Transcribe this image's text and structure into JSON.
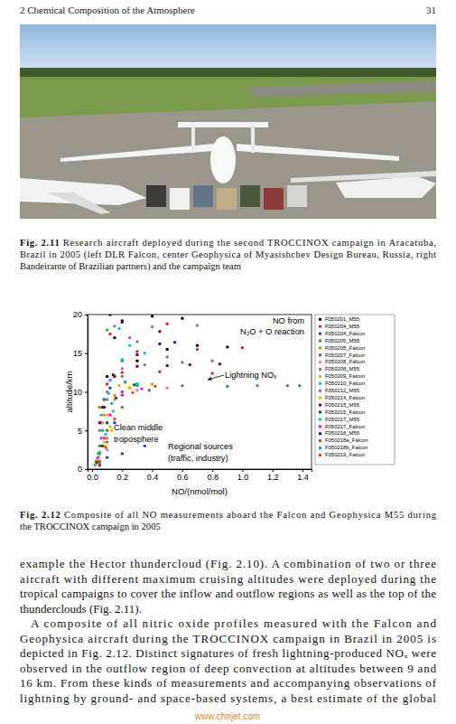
{
  "header": {
    "chapter": "2 Chemical Composition of the Atmosphere",
    "page": 31
  },
  "captions": [
    {
      "label": "Fig. 2.11",
      "lines": [
        "Research aircraft deployed during the second TROCCINOX campaign in Aracatuba,",
        "Brazil in 2005 (left DLR Falcon, center Geophysica of Myasishchev Design Bureau, Russia, right",
        "Bandeirante of Brazilian partners) and the campaign team"
      ]
    },
    {
      "label": "Fig. 2.12",
      "lines": [
        "Composite of all NO measurements aboard the Falcon and Geophysica M55 during",
        "the TROCCINOX campaign in 2005"
      ]
    }
  ],
  "chart_data": {
    "type": "scatter",
    "x_label": "NO/(nmol/mol)",
    "y_label": "altitude/km",
    "xlim": [
      -0.03,
      1.46
    ],
    "ylim": [
      0,
      20
    ],
    "xticks": [
      {
        "value": 0,
        "label": "0.0"
      },
      0.2,
      0.4,
      0.6,
      0.8,
      {
        "value": 1,
        "label": "1.0"
      },
      1.2,
      1.4
    ],
    "yticks": [
      0,
      5,
      10,
      15,
      20
    ],
    "grid": false,
    "legend": "right",
    "marker": "circle",
    "annotations": [
      [
        "NO from",
        "N₂O + O reaction"
      ],
      [
        "Lightning NOₓ"
      ],
      [
        "Clean middle",
        "troposphere"
      ],
      [
        "Regional sources",
        "(traffic, industry)"
      ]
    ],
    "series": [
      {
        "name": "F050201_M55",
        "color": "#000000",
        "x": [
          0.05,
          0.08,
          0.1,
          0.3,
          0.5,
          0.7,
          0.9,
          0.6,
          0.4,
          0.2,
          0.15,
          0.12
        ],
        "values": [
          2,
          8,
          12,
          14,
          15.5,
          16,
          15.8,
          19.5,
          19.8,
          19.2,
          17,
          20
        ]
      },
      {
        "name": "F050204_M55",
        "color": "#d62728",
        "x": [
          0.04,
          0.06,
          0.1,
          0.2,
          0.45,
          0.8,
          1.0,
          0.7,
          0.3,
          0.5,
          0.12
        ],
        "values": [
          1,
          6,
          11,
          12.5,
          12.6,
          12.4,
          15.7,
          15.5,
          15.2,
          18.8,
          17.5
        ]
      },
      {
        "name": "F050204_Falcon",
        "color": "#1f3fbf",
        "x": [
          0.05,
          0.1,
          0.2,
          0.35,
          0.15,
          0.08,
          0.12,
          0.3
        ],
        "values": [
          0.5,
          1.5,
          2,
          3,
          6,
          9,
          10.5,
          11
        ]
      },
      {
        "name": "F050205_M55",
        "color": "#2ca02c",
        "x": [
          0.05,
          0.08,
          0.3,
          0.6,
          0.9,
          1.1,
          1.3,
          1.38,
          0.2,
          0.1
        ],
        "values": [
          3,
          9,
          10.8,
          10.8,
          10.7,
          10.8,
          10.8,
          10.8,
          14,
          18
        ]
      },
      {
        "name": "F050205_Falcon",
        "color": "#ff7f0e",
        "x": [
          0.02,
          0.05,
          0.1,
          0.08,
          0.15,
          0.25,
          0.4
        ],
        "values": [
          0.5,
          2,
          4,
          7,
          9.5,
          10.5,
          11
        ]
      },
      {
        "name": "F050207_Falcon",
        "color": "#8c564b",
        "x": [
          0.03,
          0.06,
          0.1,
          0.05,
          0.2,
          0.12
        ],
        "values": [
          1,
          3,
          5,
          8,
          10,
          11.5
        ]
      },
      {
        "name": "F050208_Falcon",
        "color": "#e377c2",
        "x": [
          0.04,
          0.1,
          0.07,
          0.15,
          0.3,
          0.5
        ],
        "values": [
          0.8,
          2.5,
          6,
          9,
          10.2,
          10.5
        ]
      },
      {
        "name": "F050208_M55",
        "color": "#7f7f7f",
        "x": [
          0.05,
          0.1,
          0.2,
          0.35,
          0.6,
          0.8,
          0.3,
          0.15
        ],
        "values": [
          5,
          10,
          12,
          13.5,
          13.8,
          14,
          16.5,
          18.5
        ]
      },
      {
        "name": "F050209_Falcon",
        "color": "#bcbd22",
        "x": [
          0.03,
          0.08,
          0.12,
          0.06,
          0.18,
          0.22
        ],
        "values": [
          1.2,
          3.5,
          5.5,
          8,
          10.8,
          11.2
        ]
      },
      {
        "name": "F050210_Falcon",
        "color": "#17becf",
        "x": [
          0.02,
          0.05,
          0.09,
          0.14,
          0.11,
          0.3
        ],
        "values": [
          0.6,
          2.2,
          4.5,
          7.5,
          9.8,
          11
        ]
      },
      {
        "name": "F050212_M55",
        "color": "#9467bd",
        "x": [
          0.06,
          0.1,
          0.2,
          0.5,
          0.7,
          0.4,
          0.25
        ],
        "values": [
          4,
          9,
          13,
          14.5,
          18.6,
          18.4,
          17
        ]
      },
      {
        "name": "F050214_Falcon",
        "color": "#ffbb00",
        "x": [
          0.04,
          0.09,
          0.13,
          0.1,
          0.2,
          0.25
        ],
        "values": [
          1,
          3,
          5,
          7,
          9.5,
          10.6
        ]
      },
      {
        "name": "F050215_M55",
        "color": "#8b0000",
        "x": [
          0.05,
          0.15,
          0.3,
          0.5,
          0.65,
          0.85,
          0.45
        ],
        "values": [
          6,
          12,
          13.3,
          13.4,
          13.5,
          13.6,
          17.8
        ]
      },
      {
        "name": "F050215_Falcon",
        "color": "#006400",
        "x": [
          0.03,
          0.07,
          0.1,
          0.16,
          0.28
        ],
        "values": [
          0.9,
          3,
          6,
          9.2,
          10.9
        ]
      },
      {
        "name": "F050217_M55",
        "color": "#00bfff",
        "x": [
          0.06,
          0.12,
          0.2,
          0.35,
          0.25,
          0.18
        ],
        "values": [
          7,
          11.5,
          14.2,
          15,
          16,
          18.2
        ]
      },
      {
        "name": "F050217_Falcon",
        "color": "#ff00ff",
        "x": [
          0.04,
          0.08,
          0.12,
          0.2,
          0.33
        ],
        "values": [
          1.5,
          4,
          7,
          9.6,
          10.4
        ]
      },
      {
        "name": "F050218_M55",
        "color": "#4b0082",
        "x": [
          0.07,
          0.14,
          0.3,
          0.45,
          0.55,
          0.2
        ],
        "values": [
          8,
          12.2,
          14.8,
          16.2,
          16.4,
          19
        ]
      },
      {
        "name": "F050218a_Falcon",
        "color": "#a0522d",
        "x": [
          0.05,
          0.1,
          0.2,
          0.38
        ],
        "values": [
          1,
          3.5,
          8,
          10.2
        ]
      },
      {
        "name": "F050218b_Falcon",
        "color": "#00c070",
        "x": [
          0.04,
          0.07,
          0.13,
          0.22
        ],
        "values": [
          2,
          5,
          8.5,
          11.3
        ]
      },
      {
        "name": "F050219_Falcon",
        "color": "#ff4500",
        "x": [
          0.05,
          0.09,
          0.15,
          0.27,
          0.42
        ],
        "values": [
          0.7,
          2.8,
          6.5,
          9.9,
          10.7
        ]
      }
    ]
  },
  "body": [
    {
      "lines": [
        "example the Hector thundercloud (Fig. 2.10). A combination of two or three",
        "aircraft with different maximum cruising altitudes were deployed during the",
        "tropical campaigns to cover the inflow and outflow regions as well as the top of the",
        "thunderclouds (Fig. 2.11)."
      ]
    },
    {
      "lines": [
        "A composite of all nitric oxide profiles measured with the Falcon and",
        "Geophysica aircraft during the TROCCINOX campaign in Brazil in 2005 is",
        "depicted in Fig. 2.12. Distinct signatures of fresh lightning-produced NOₓ were",
        "observed in the outflow region of deep convection at altitudes between 9 and",
        "16 km. From these kinds of measurements and accompanying observations of",
        "lightning by ground- and space-based systems, a best estimate of the global"
      ]
    }
  ],
  "watermark": "www.chnjet.com"
}
